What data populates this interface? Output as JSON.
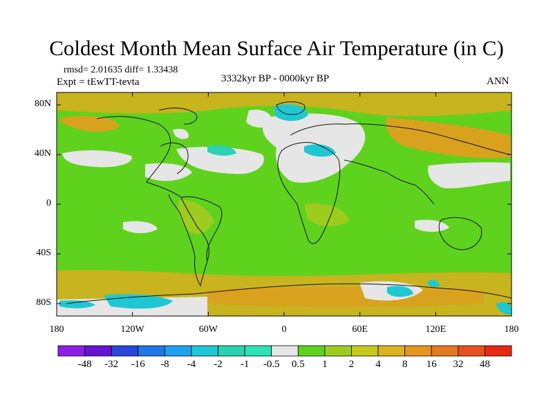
{
  "title": "Coldest Month Mean Surface Air Temperature (in C)",
  "stats": "rmsd= 2.01635  diff= 1.33438",
  "experiment": "Expt = tEwTT-tevta",
  "period": "3332kyr BP - 0000kyr BP",
  "season": "ANN",
  "map": {
    "lon_range": [
      -180,
      180
    ],
    "lat_range": [
      -90,
      90
    ],
    "x_ticks": [
      {
        "lon": -180,
        "label": "180"
      },
      {
        "lon": -120,
        "label": "120W"
      },
      {
        "lon": -60,
        "label": "60W"
      },
      {
        "lon": 0,
        "label": "0"
      },
      {
        "lon": 60,
        "label": "60E"
      },
      {
        "lon": 120,
        "label": "120E"
      },
      {
        "lon": 180,
        "label": "180"
      }
    ],
    "y_ticks": [
      {
        "lat": 80,
        "label": "80N"
      },
      {
        "lat": 40,
        "label": "40N"
      },
      {
        "lat": 0,
        "label": "0"
      },
      {
        "lat": -40,
        "label": "40S"
      },
      {
        "lat": -80,
        "label": "80S"
      }
    ],
    "field_colors": {
      "dominant": "#5fd21e",
      "warm_1_2": "#9ccd1e",
      "warm_2_4": "#c8b41e",
      "warm_4_8": "#d9a21e",
      "near_zero": "#e6e6e6",
      "cool_-1_-0.5": "#29d3b1",
      "cool_-2_-1": "#1ec8d2",
      "coast": "#111111"
    }
  },
  "colorbar": {
    "colors": [
      "#8c1ee6",
      "#6414d2",
      "#2846dc",
      "#1e78e6",
      "#1ea0f0",
      "#1ec8d2",
      "#29d3b1",
      "#2ce3b6",
      "#e6e6e6",
      "#5fd21e",
      "#9ccd1e",
      "#c8c81e",
      "#dcb41e",
      "#e6961e",
      "#e6781e",
      "#e6501e",
      "#e62814"
    ],
    "labels": [
      "-48",
      "-32",
      "-16",
      "-8",
      "-4",
      "-2",
      "-1",
      "-0.5",
      "0.5",
      "1",
      "2",
      "4",
      "8",
      "16",
      "32",
      "48"
    ]
  }
}
